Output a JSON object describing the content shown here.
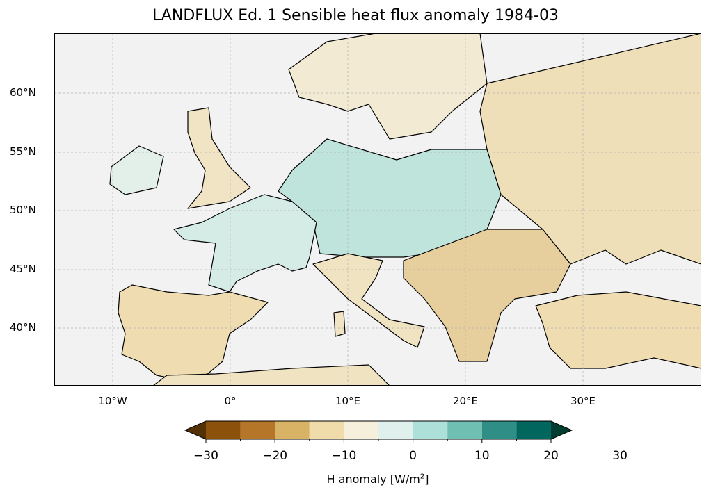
{
  "title": "LANDFLUX Ed. 1 Sensible heat flux anomaly 1984-03",
  "lat_labels": [
    "60°N",
    "55°N",
    "50°N",
    "45°N",
    "40°N"
  ],
  "lon_labels": [
    "10°W",
    "0°",
    "10°E",
    "20°E",
    "30°E"
  ],
  "colorbar": {
    "ticks": [
      "−30",
      "−20",
      "−10",
      "0",
      "10",
      "20",
      "30"
    ],
    "label": "H anomaly [W/m",
    "label_sup": "2",
    "label_end": "]",
    "colors": [
      "#543005",
      "#8c510a",
      "#b67629",
      "#d8b365",
      "#f0dcaa",
      "#f5efdc",
      "#dff0ed",
      "#ade0d8",
      "#6fc0b3",
      "#2f8f86",
      "#01665e",
      "#003c30"
    ]
  },
  "colors": {
    "ocean": "#f2f2f2",
    "grid": "#b0b0b0"
  }
}
